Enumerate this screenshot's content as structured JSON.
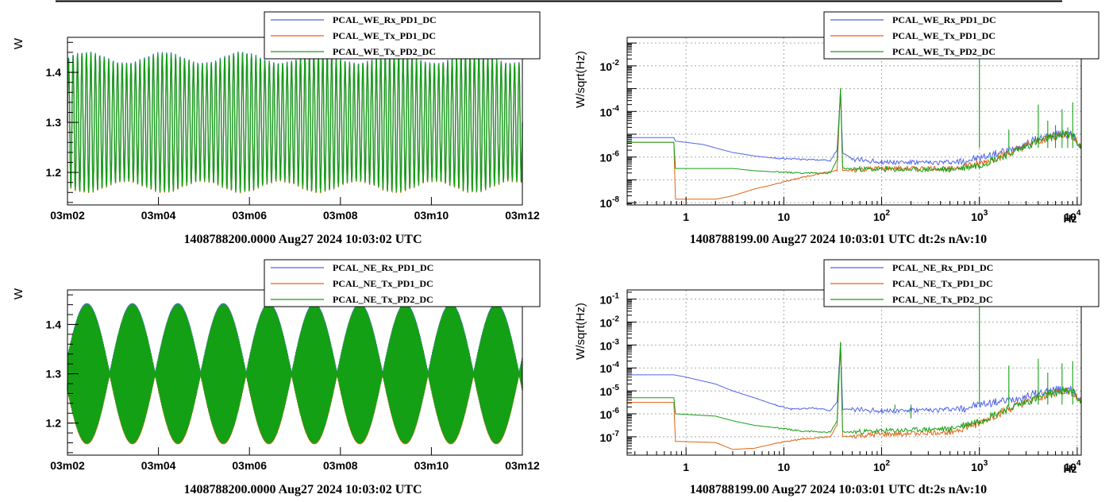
{
  "colors": {
    "rx": "#5064e6",
    "tx1": "#e06414",
    "tx2": "#14a014"
  },
  "chart_data": [
    {
      "type": "line",
      "ylabel": "W",
      "x_ticks": [
        "03m02",
        "03m04",
        "03m06",
        "03m08",
        "03m10",
        "03m12"
      ],
      "y_ticks": [
        "1.2",
        "1.3",
        "1.4"
      ],
      "ylim": [
        1.135,
        1.47
      ],
      "footer": "1408788200.0000 Aug27 2024 10:03:02 UTC",
      "legend": [
        "PCAL_WE_Rx_PD1_DC",
        "PCAL_WE_Tx_PD1_DC",
        "PCAL_WE_Tx_PD2_DC"
      ],
      "signal": {
        "mean": 1.3,
        "amplitude": 0.14,
        "pattern": "uniform",
        "cycles": 102
      }
    },
    {
      "type": "line",
      "x_scale": "log",
      "y_scale": "log",
      "ylabel": "W/sqrt(Hz)",
      "x_tick_labels": [
        "1",
        "10",
        "10^2",
        "10^3",
        "10^4"
      ],
      "y_tick_labels": [
        "10^-8",
        "10^-6",
        "10^-4",
        "10^-2"
      ],
      "xunit": "Hz",
      "xlim": [
        0.25,
        11000
      ],
      "ylim_exp": [
        -8.1,
        -0.75
      ],
      "footer": "1408788199.00 Aug27 2024 10:03:01 UTC dt:2s nAv:10",
      "legend": [
        "PCAL_WE_Rx_PD1_DC",
        "PCAL_WE_Tx_PD1_DC",
        "PCAL_WE_Tx_PD2_DC"
      ],
      "series": [
        {
          "name": "PCAL_WE_Rx_PD1_DC",
          "color_key": "rx",
          "points": [
            [
              0.25,
              -5.15
            ],
            [
              0.75,
              -5.15
            ],
            [
              0.78,
              -5.3
            ],
            [
              1.5,
              -5.45
            ],
            [
              2,
              -5.6
            ],
            [
              3,
              -5.8
            ],
            [
              5,
              -5.95
            ],
            [
              8,
              -6.05
            ],
            [
              15,
              -6.1
            ],
            [
              30,
              -6.15
            ],
            [
              35,
              -5.7
            ],
            [
              38,
              -3.1
            ],
            [
              40,
              -5.8
            ],
            [
              50,
              -6.1
            ],
            [
              100,
              -6.2
            ],
            [
              300,
              -6.25
            ],
            [
              600,
              -6.2
            ],
            [
              1000,
              -6.05
            ],
            [
              2000,
              -5.7
            ],
            [
              4000,
              -5.2
            ],
            [
              7000,
              -4.95
            ],
            [
              9000,
              -5.05
            ],
            [
              11000,
              -5.6
            ]
          ]
        },
        {
          "name": "PCAL_WE_Tx_PD1_DC",
          "color_key": "tx1",
          "points": [
            [
              0.25,
              -5.35
            ],
            [
              0.75,
              -5.35
            ],
            [
              0.78,
              -7.85
            ],
            [
              2,
              -7.85
            ],
            [
              3,
              -7.7
            ],
            [
              5,
              -7.4
            ],
            [
              8,
              -7.2
            ],
            [
              15,
              -6.9
            ],
            [
              25,
              -6.7
            ],
            [
              35,
              -6.6
            ],
            [
              38,
              -3.0
            ],
            [
              40,
              -6.6
            ],
            [
              100,
              -6.5
            ],
            [
              500,
              -6.5
            ],
            [
              1000,
              -6.3
            ],
            [
              2000,
              -5.85
            ],
            [
              4000,
              -5.3
            ],
            [
              7000,
              -5.0
            ],
            [
              9000,
              -5.05
            ],
            [
              11000,
              -5.6
            ]
          ]
        },
        {
          "name": "PCAL_WE_Tx_PD2_DC",
          "color_key": "tx2",
          "points": [
            [
              0.25,
              -5.35
            ],
            [
              0.75,
              -5.35
            ],
            [
              0.78,
              -6.5
            ],
            [
              3,
              -6.5
            ],
            [
              5,
              -6.6
            ],
            [
              8,
              -6.65
            ],
            [
              15,
              -6.7
            ],
            [
              30,
              -6.7
            ],
            [
              35,
              -6.1
            ],
            [
              38,
              -3.0
            ],
            [
              40,
              -6.5
            ],
            [
              100,
              -6.55
            ],
            [
              500,
              -6.55
            ],
            [
              1000,
              -6.35
            ],
            [
              2000,
              -5.85
            ],
            [
              4000,
              -5.3
            ],
            [
              7000,
              -5.0
            ],
            [
              9000,
              -5.05
            ],
            [
              11000,
              -5.6
            ]
          ]
        }
      ],
      "lines": [
        [
          1000,
          -1.0
        ],
        [
          2000,
          -4.8
        ],
        [
          4000,
          -3.7
        ],
        [
          5000,
          -4.4
        ],
        [
          6000,
          -4.6
        ],
        [
          7000,
          -3.9
        ],
        [
          8000,
          -4.7
        ],
        [
          9000,
          -3.6
        ]
      ]
    },
    {
      "type": "line",
      "ylabel": "W",
      "x_ticks": [
        "03m02",
        "03m04",
        "03m06",
        "03m08",
        "03m10",
        "03m12"
      ],
      "y_ticks": [
        "1.2",
        "1.3",
        "1.4"
      ],
      "ylim": [
        1.135,
        1.47
      ],
      "footer": "1408788200.0000 Aug27 2024 10:03:02 UTC",
      "legend": [
        "PCAL_NE_Rx_PD1_DC",
        "PCAL_NE_Tx_PD1_DC",
        "PCAL_NE_Tx_PD2_DC"
      ],
      "signal": {
        "mean": 1.3,
        "amplitude": 0.14,
        "pattern": "beat",
        "beats": 10
      }
    },
    {
      "type": "line",
      "x_scale": "log",
      "y_scale": "log",
      "ylabel": "W/sqrt(Hz)",
      "x_tick_labels": [
        "1",
        "10",
        "10^2",
        "10^3",
        "10^4"
      ],
      "y_tick_labels": [
        "10^-7",
        "10^-6",
        "10^-5",
        "10^-4",
        "10^-3",
        "10^-2",
        "10^-1"
      ],
      "xunit": "Hz",
      "xlim": [
        0.25,
        11000
      ],
      "ylim_exp": [
        -7.8,
        -0.6
      ],
      "footer": "1408788199.00 Aug27 2024 10:03:01 UTC dt:2s nAv:10",
      "legend": [
        "PCAL_NE_Rx_PD1_DC",
        "PCAL_NE_Tx_PD1_DC",
        "PCAL_NE_Tx_PD2_DC"
      ],
      "series": [
        {
          "name": "PCAL_NE_Rx_PD1_DC",
          "color_key": "rx",
          "points": [
            [
              0.25,
              -4.3
            ],
            [
              0.75,
              -4.3
            ],
            [
              1,
              -4.4
            ],
            [
              2,
              -4.7
            ],
            [
              3,
              -5.0
            ],
            [
              5,
              -5.3
            ],
            [
              8,
              -5.6
            ],
            [
              12,
              -5.8
            ],
            [
              20,
              -5.75
            ],
            [
              30,
              -5.85
            ],
            [
              35,
              -5.5
            ],
            [
              38,
              -2.9
            ],
            [
              40,
              -5.8
            ],
            [
              100,
              -5.85
            ],
            [
              300,
              -5.85
            ],
            [
              700,
              -5.75
            ],
            [
              1000,
              -5.6
            ],
            [
              2000,
              -5.4
            ],
            [
              4000,
              -5.1
            ],
            [
              7000,
              -4.9
            ],
            [
              9000,
              -5.0
            ],
            [
              11000,
              -5.4
            ]
          ]
        },
        {
          "name": "PCAL_NE_Tx_PD1_DC",
          "color_key": "tx1",
          "points": [
            [
              0.25,
              -5.5
            ],
            [
              0.75,
              -5.5
            ],
            [
              0.78,
              -7.2
            ],
            [
              2,
              -7.25
            ],
            [
              3,
              -7.55
            ],
            [
              5,
              -7.5
            ],
            [
              8,
              -7.3
            ],
            [
              15,
              -7.1
            ],
            [
              30,
              -7.0
            ],
            [
              35,
              -6.5
            ],
            [
              38,
              -2.9
            ],
            [
              40,
              -7.0
            ],
            [
              100,
              -6.9
            ],
            [
              500,
              -6.8
            ],
            [
              1000,
              -6.4
            ],
            [
              2000,
              -5.8
            ],
            [
              4000,
              -5.3
            ],
            [
              7000,
              -5.0
            ],
            [
              9000,
              -5.05
            ],
            [
              11000,
              -5.5
            ]
          ]
        },
        {
          "name": "PCAL_NE_Tx_PD2_DC",
          "color_key": "tx2",
          "points": [
            [
              0.25,
              -5.3
            ],
            [
              0.75,
              -5.3
            ],
            [
              0.78,
              -6.0
            ],
            [
              2,
              -6.1
            ],
            [
              3,
              -6.3
            ],
            [
              5,
              -6.5
            ],
            [
              8,
              -6.6
            ],
            [
              15,
              -6.75
            ],
            [
              30,
              -6.8
            ],
            [
              35,
              -6.3
            ],
            [
              38,
              -2.9
            ],
            [
              40,
              -6.8
            ],
            [
              100,
              -6.75
            ],
            [
              500,
              -6.65
            ],
            [
              1000,
              -6.3
            ],
            [
              2000,
              -5.75
            ],
            [
              4000,
              -5.3
            ],
            [
              7000,
              -5.0
            ],
            [
              9000,
              -5.05
            ],
            [
              11000,
              -5.5
            ]
          ]
        }
      ],
      "lines": [
        [
          1000,
          -0.8
        ],
        [
          137,
          -5.8
        ],
        [
          200,
          -6.2
        ],
        [
          2000,
          -3.9
        ],
        [
          4000,
          -3.6
        ],
        [
          5000,
          -4.2
        ],
        [
          7000,
          -3.8
        ],
        [
          9000,
          -3.7
        ]
      ]
    }
  ]
}
